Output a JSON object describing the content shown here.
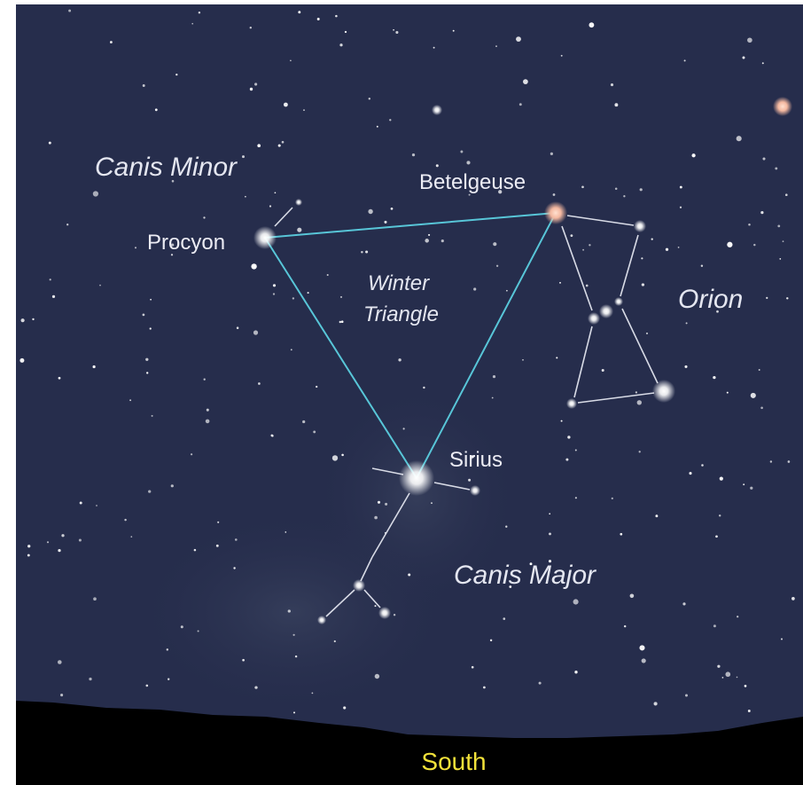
{
  "constellations": [
    "Canis Minor",
    "Orion",
    "Canis Major"
  ],
  "stars": [
    "Procyon",
    "Betelgeuse",
    "Sirius"
  ],
  "asterism": [
    "Winter",
    "Triangle"
  ],
  "direction": "South"
}
